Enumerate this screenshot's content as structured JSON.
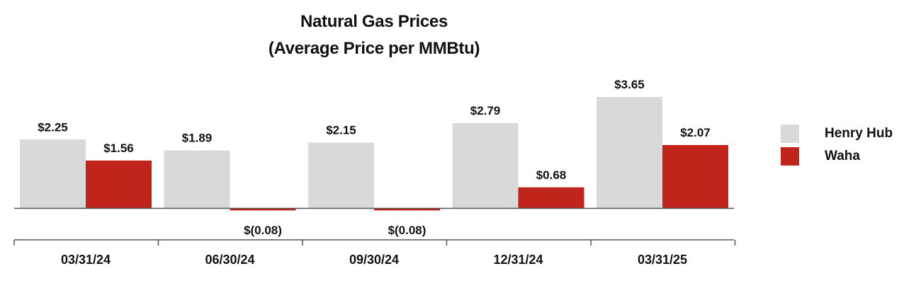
{
  "chart_data": {
    "type": "bar",
    "title": "Natural Gas Prices",
    "subtitle": "(Average Price per MMBtu)",
    "categories": [
      "03/31/24",
      "06/30/24",
      "09/30/24",
      "12/31/24",
      "03/31/25"
    ],
    "series": [
      {
        "name": "Henry Hub",
        "color": "#d9d9d9",
        "values": [
          2.25,
          1.89,
          2.15,
          2.79,
          3.65
        ],
        "labels": [
          "$2.25",
          "$1.89",
          "$2.15",
          "$2.79",
          "$3.65"
        ]
      },
      {
        "name": "Waha",
        "color": "#c0241a",
        "values": [
          1.56,
          -0.08,
          -0.08,
          0.68,
          2.07
        ],
        "labels": [
          "$1.56",
          "$(0.08)",
          "$(0.08)",
          "$0.68",
          "$2.07"
        ]
      }
    ],
    "ylim": [
      -0.1,
      3.8
    ],
    "grid": false,
    "legend_position": "right"
  }
}
